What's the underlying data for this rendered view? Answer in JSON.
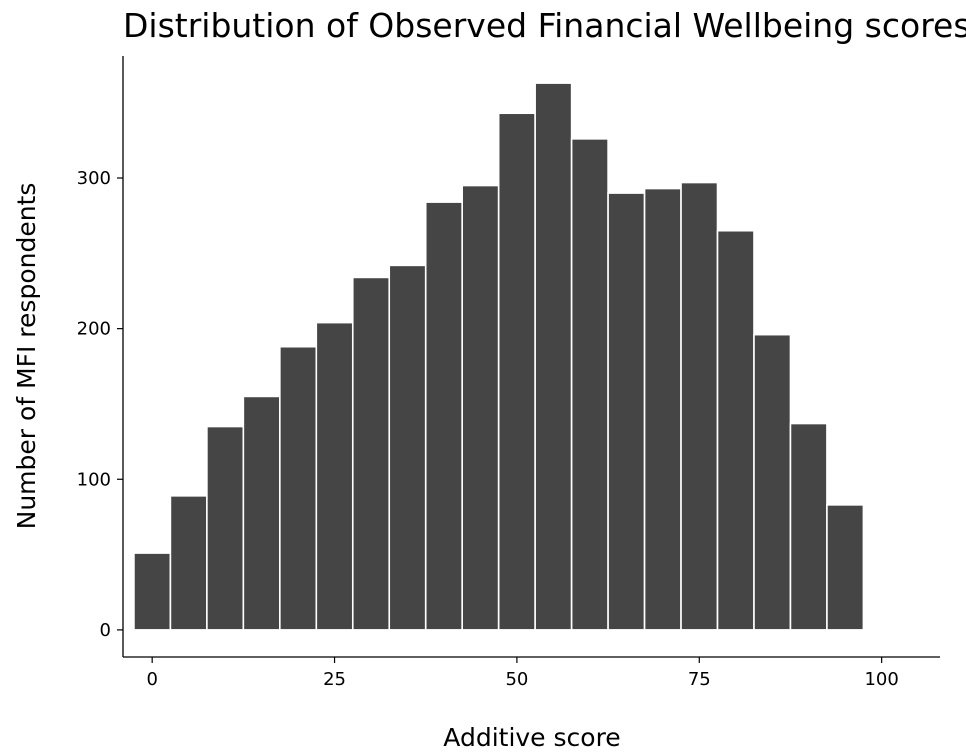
{
  "chart_data": {
    "type": "bar",
    "title": "Distribution of Observed Financial Wellbeing scores",
    "xlabel": "Additive score",
    "ylabel": "Number of MFI respondents",
    "bin_width": 5,
    "x": [
      0,
      5,
      10,
      15,
      20,
      25,
      30,
      35,
      40,
      45,
      50,
      55,
      60,
      65,
      70,
      75,
      80,
      85,
      90,
      95,
      100
    ],
    "values": [
      51,
      89,
      135,
      155,
      188,
      204,
      234,
      242,
      284,
      295,
      343,
      363,
      326,
      290,
      293,
      297,
      265,
      196,
      137,
      83,
      0
    ],
    "xlim": [
      -4,
      108
    ],
    "ylim": [
      -18,
      381
    ],
    "xticks": [
      0,
      25,
      50,
      75,
      100
    ],
    "xtick_labels": [
      "0",
      "25",
      "50",
      "75",
      "100"
    ],
    "yticks": [
      0,
      100,
      200,
      300
    ],
    "ytick_labels": [
      "0",
      "100",
      "200",
      "300"
    ],
    "grid": false,
    "bar_color": "#454545"
  }
}
